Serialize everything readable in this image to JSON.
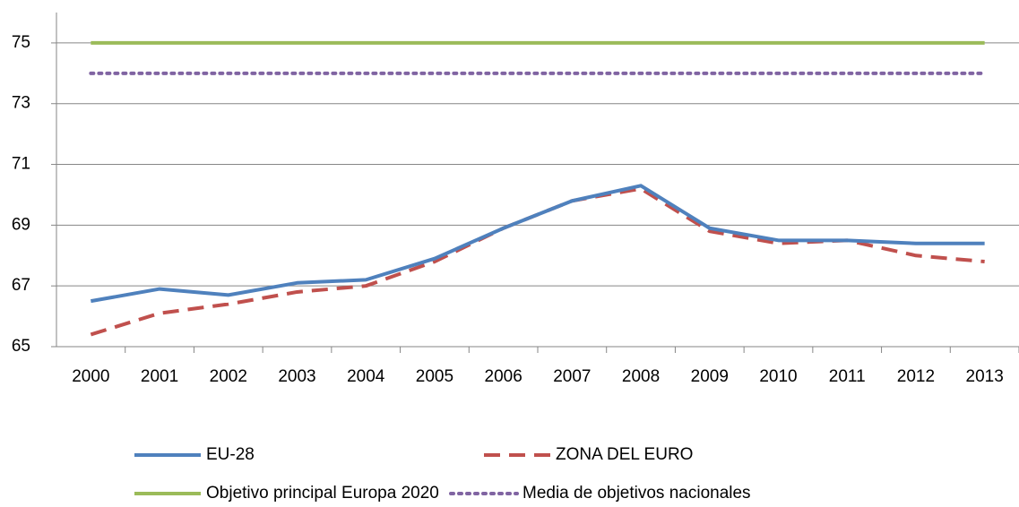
{
  "chart_data": {
    "type": "line",
    "categories": [
      "2000",
      "2001",
      "2002",
      "2003",
      "2004",
      "2005",
      "2006",
      "2007",
      "2008",
      "2009",
      "2010",
      "2011",
      "2012",
      "2013"
    ],
    "series": [
      {
        "name": "EU-28",
        "color": "#4f81bd",
        "dash": "solid",
        "values": [
          66.5,
          66.9,
          66.7,
          67.1,
          67.2,
          67.9,
          68.9,
          69.8,
          70.3,
          68.9,
          68.5,
          68.5,
          68.4,
          68.4
        ]
      },
      {
        "name": "ZONA DEL EURO",
        "color": "#c0504d",
        "dash": "dashed",
        "values": [
          65.4,
          66.1,
          66.4,
          66.8,
          67.0,
          67.8,
          68.9,
          69.8,
          70.2,
          68.8,
          68.4,
          68.5,
          68.0,
          67.8
        ]
      },
      {
        "name": "Objetivo principal Europa 2020",
        "color": "#9bbb59",
        "dash": "solid",
        "values": [
          75,
          75,
          75,
          75,
          75,
          75,
          75,
          75,
          75,
          75,
          75,
          75,
          75,
          75
        ]
      },
      {
        "name": "Media de objetivos nacionales",
        "color": "#8064a2",
        "dash": "dotted",
        "values": [
          74,
          74,
          74,
          74,
          74,
          74,
          74,
          74,
          74,
          74,
          74,
          74,
          74,
          74
        ]
      }
    ],
    "ylim": [
      65,
      76
    ],
    "yticks": [
      65,
      67,
      69,
      71,
      73,
      75
    ],
    "grid": true
  }
}
